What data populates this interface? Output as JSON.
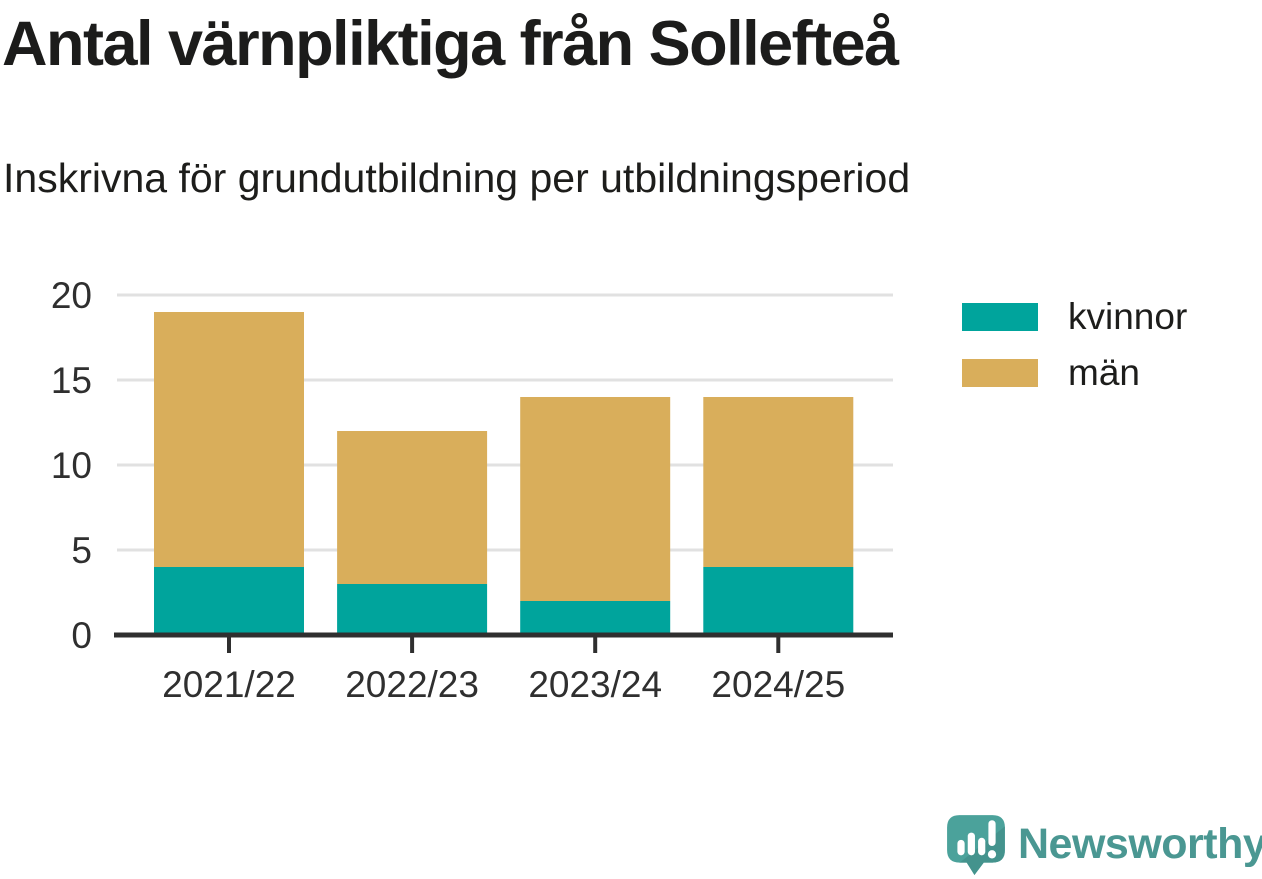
{
  "title": "Antal värnpliktiga från Sollefteå",
  "subtitle": "Inskrivna för grundutbildning per utbildningsperiod",
  "colors": {
    "kvinnor": "#00a49c",
    "man": "#d9ae5b",
    "axis": "#2f2f2f",
    "grid": "#e1e1e1",
    "tick_text": "#2f2f2f",
    "text": "#1d1d1b",
    "brand": "#4a9792",
    "brand_icon": "#4ba29b",
    "brand_icon_shadow": "#44938d"
  },
  "chart_data": {
    "type": "bar",
    "stacked": true,
    "title": "Antal värnpliktiga från Sollefteå",
    "subtitle": "Inskrivna för grundutbildning per utbildningsperiod",
    "categories": [
      "2021/22",
      "2022/23",
      "2023/24",
      "2024/25"
    ],
    "series": [
      {
        "name": "kvinnor",
        "color": "#00a49c",
        "values": [
          4,
          3,
          2,
          4
        ]
      },
      {
        "name": "män",
        "color": "#d9ae5b",
        "values": [
          15,
          9,
          12,
          10
        ]
      }
    ],
    "totals": [
      19,
      12,
      14,
      14
    ],
    "xlabel": "",
    "ylabel": "",
    "ylim": [
      0,
      20
    ],
    "yticks": [
      0,
      5,
      10,
      15,
      20
    ],
    "grid": true,
    "legend_position": "right"
  },
  "legend": {
    "items": [
      {
        "label": "kvinnor",
        "color": "#00a49c"
      },
      {
        "label": "män",
        "color": "#d9ae5b"
      }
    ]
  },
  "logo": {
    "text": "Newsworthy"
  }
}
